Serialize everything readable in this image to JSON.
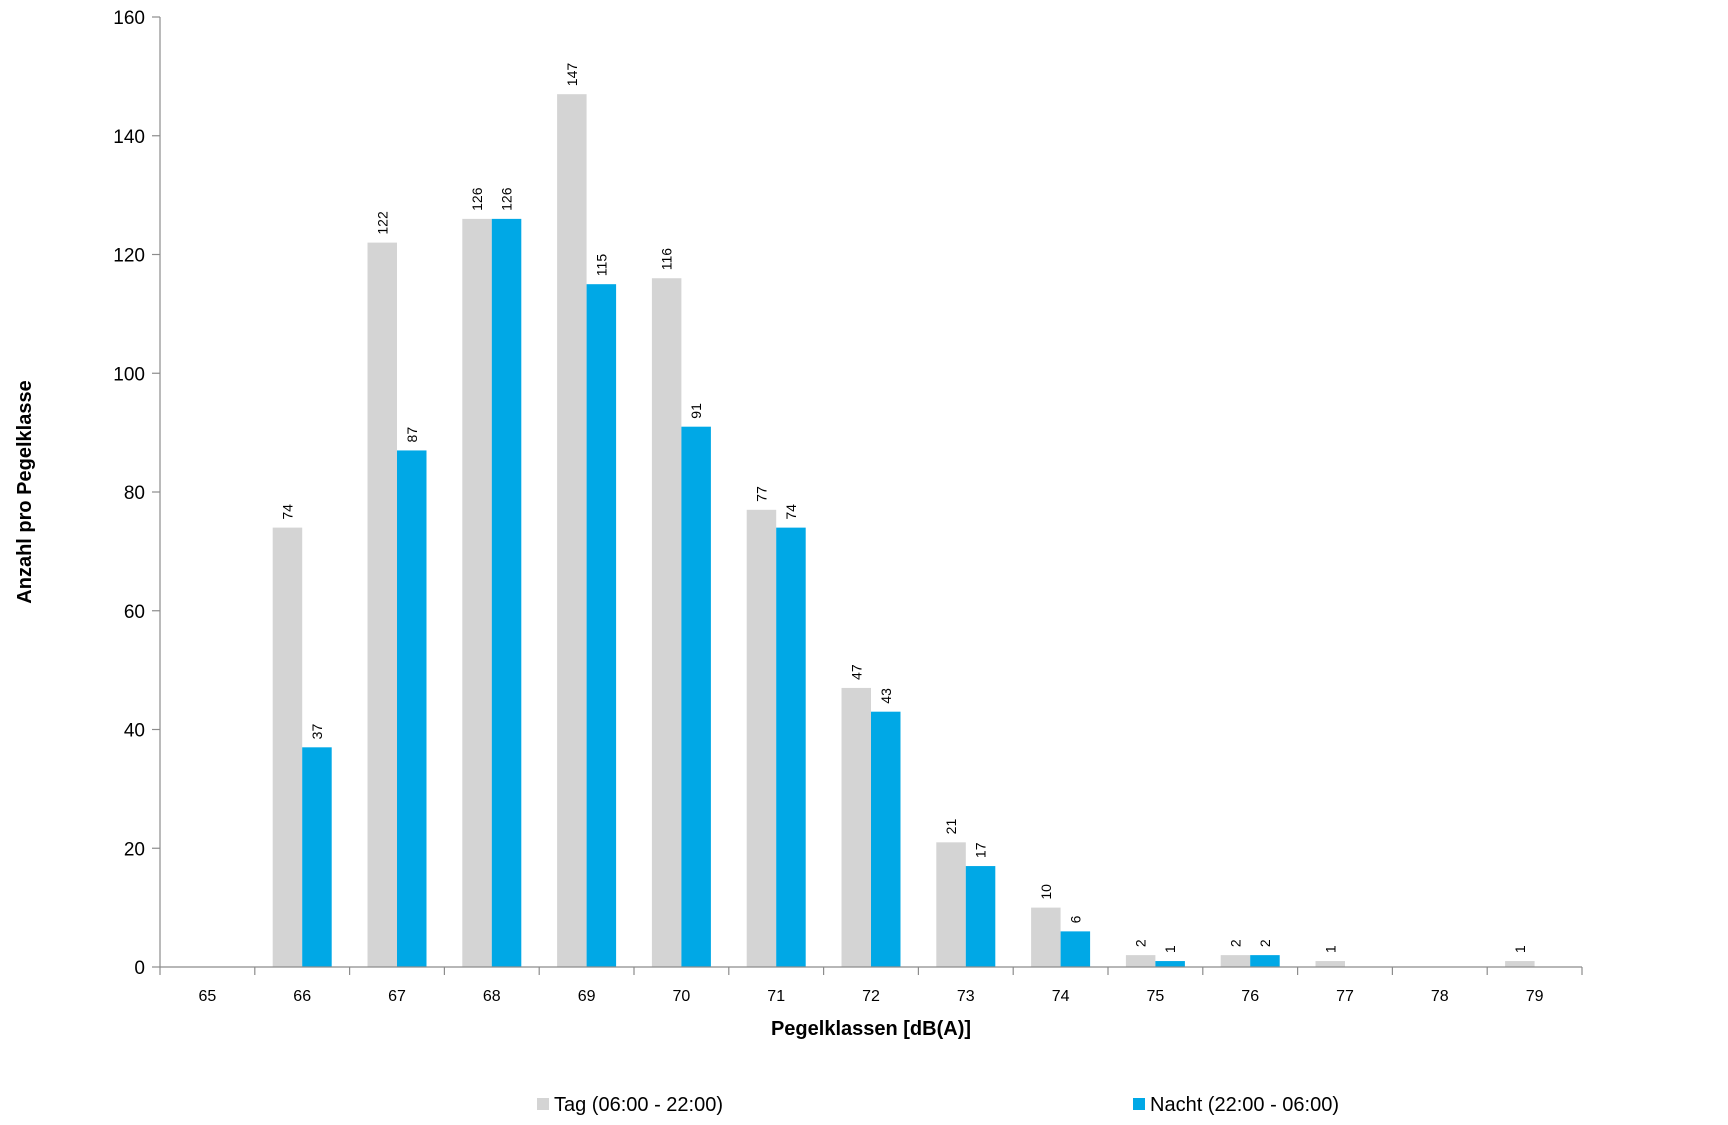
{
  "chart_data": {
    "type": "bar",
    "title": "",
    "xlabel": "Pegelklassen [dB(A)]",
    "ylabel": "Anzahl pro Pegelklasse",
    "ylim": [
      0,
      160
    ],
    "yticks": [
      0,
      20,
      40,
      60,
      80,
      100,
      120,
      140,
      160
    ],
    "grid": false,
    "legend_position": "bottom",
    "categories": [
      "65",
      "66",
      "67",
      "68",
      "69",
      "70",
      "71",
      "72",
      "73",
      "74",
      "75",
      "76",
      "77",
      "78",
      "79"
    ],
    "series": [
      {
        "name": "Tag (06:00 - 22:00)",
        "color": "#d4d4d4",
        "values": [
          0,
          74,
          122,
          126,
          147,
          116,
          77,
          47,
          21,
          10,
          2,
          2,
          1,
          0,
          1
        ],
        "labels": [
          "",
          "74",
          "122",
          "126",
          "147",
          "116",
          "77",
          "47",
          "21",
          "10",
          "2",
          "2",
          "1",
          "",
          "1"
        ]
      },
      {
        "name": "Nacht (22:00 - 06:00)",
        "color": "#00a8e6",
        "values": [
          0,
          37,
          87,
          126,
          115,
          91,
          74,
          43,
          17,
          6,
          1,
          2,
          0,
          0,
          0
        ],
        "labels": [
          "",
          "37",
          "87",
          "126",
          "115",
          "91",
          "74",
          "43",
          "17",
          "6",
          "1",
          "2",
          "",
          "",
          ""
        ]
      }
    ]
  }
}
